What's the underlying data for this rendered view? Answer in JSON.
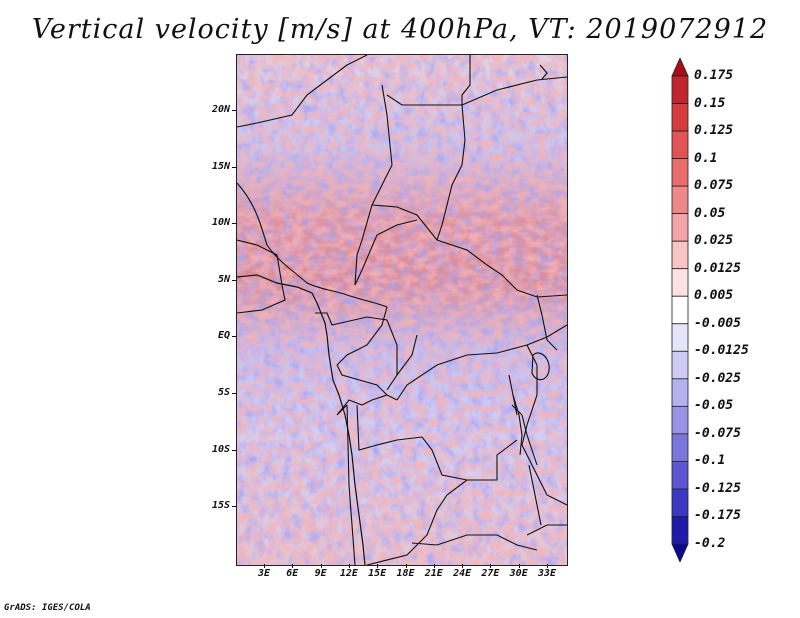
{
  "title": "Vertical velocity [m/s] at 400hPa, VT: 2019072912",
  "credit": "GrADS: IGES/COLA",
  "map": {
    "lat_labels": [
      "20N",
      "15N",
      "10N",
      "5N",
      "EQ",
      "5S",
      "10S",
      "15S"
    ],
    "lon_labels": [
      "3E",
      "6E",
      "9E",
      "12E",
      "15E",
      "18E",
      "21E",
      "24E",
      "27E",
      "30E",
      "33E"
    ]
  },
  "colorbar": {
    "labels": [
      "0.175",
      "0.15",
      "0.125",
      "0.1",
      "0.075",
      "0.05",
      "0.025",
      "0.0125",
      "0.005",
      "-0.005",
      "-0.0125",
      "-0.025",
      "-0.05",
      "-0.075",
      "-0.1",
      "-0.125",
      "-0.175",
      "-0.2"
    ],
    "colors": [
      "#a50f15",
      "#c0252b",
      "#d63b3b",
      "#e05454",
      "#e86d6d",
      "#ef8989",
      "#f4a5a5",
      "#f8c4c4",
      "#fce3e3",
      "#ffffff",
      "#e6e4fa",
      "#cfcbf5",
      "#b5b0ee",
      "#9993e6",
      "#7b75dc",
      "#5c56d0",
      "#3c37c0",
      "#1f1aa8",
      "#0c0890"
    ]
  }
}
